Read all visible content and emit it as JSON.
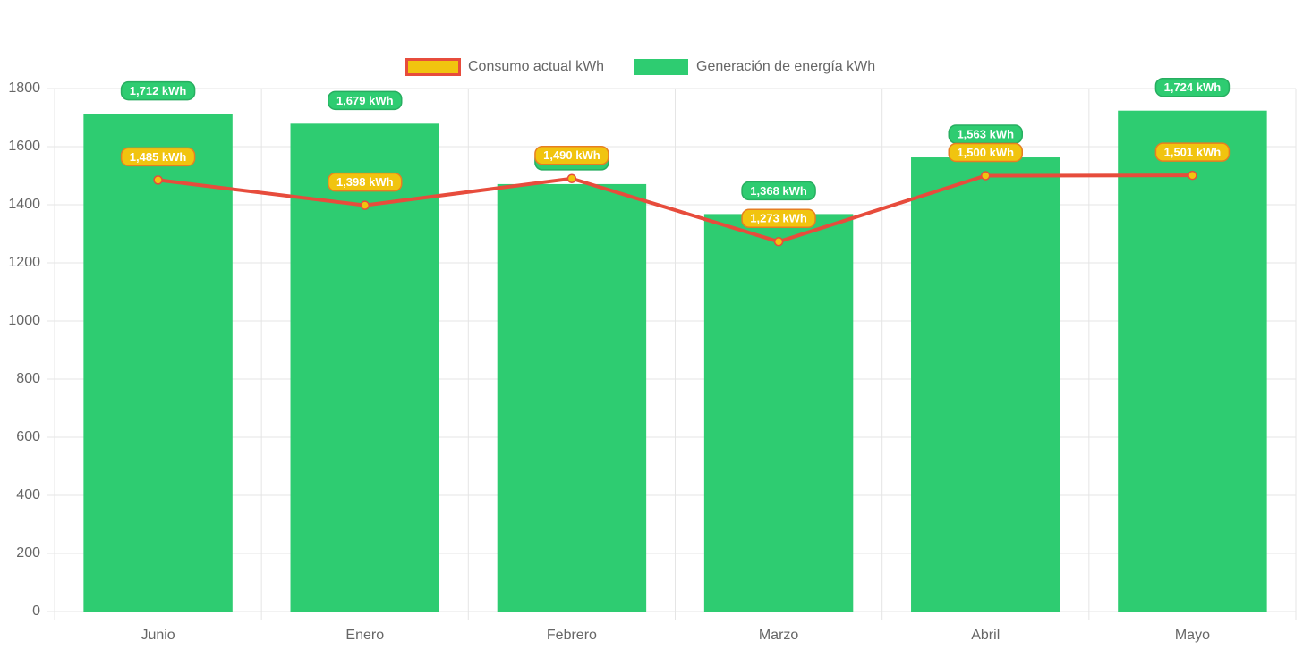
{
  "chart_data": {
    "type": "combo",
    "categories": [
      "Junio",
      "Enero",
      "Febrero",
      "Marzo",
      "Abril",
      "Mayo"
    ],
    "series": [
      {
        "name": "Consumo actual kWh",
        "type": "line",
        "color": "#e74c3c",
        "fill": "#f1c40f",
        "values": [
          1485,
          1398,
          1490,
          1273,
          1500,
          1501
        ],
        "value_labels": [
          "1,485 kWh",
          "1,398 kWh",
          "1,490 kWh",
          "1,273 kWh",
          "1,500 kWh",
          "1,501 kWh"
        ]
      },
      {
        "name": "Generación de energía kWh",
        "type": "bar",
        "color": "#2ecc71",
        "values": [
          1712,
          1679,
          1471,
          1368,
          1563,
          1724
        ],
        "value_labels": [
          "1,712 kWh",
          "1,679 kWh",
          null,
          "1,368 kWh",
          "1,563 kWh",
          "1,724 kWh"
        ]
      }
    ],
    "ylim": [
      0,
      1800
    ],
    "yticks": [
      0,
      200,
      400,
      600,
      800,
      1000,
      1200,
      1400,
      1600,
      1800
    ],
    "grid": true
  }
}
